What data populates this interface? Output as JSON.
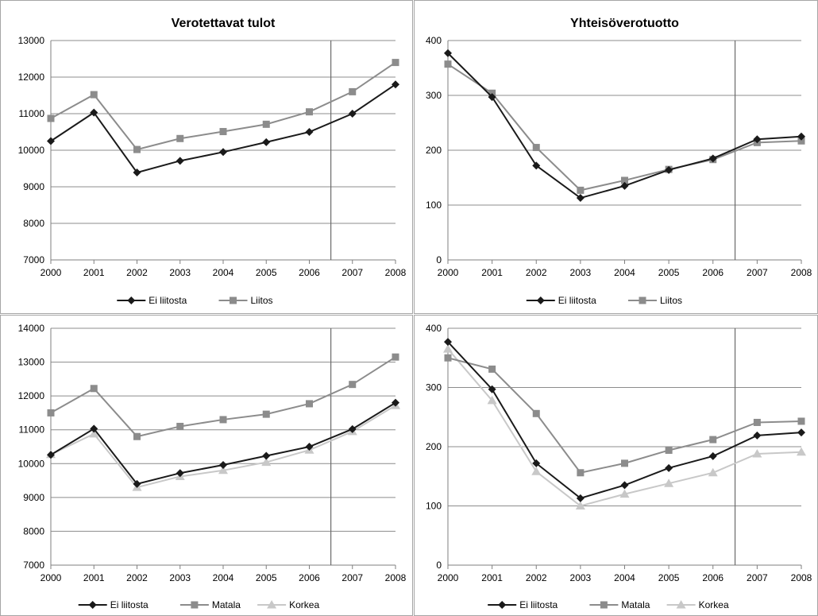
{
  "colors": {
    "ei_liitosta": "#1a1a1a",
    "liitos": "#8c8c8c",
    "matala": "#8c8c8c",
    "korkea": "#c8c8c8",
    "grid": "#8c8c8c",
    "axis": "#7f7f7f",
    "border": "#a6a6a6"
  },
  "chart_data": [
    {
      "type": "line",
      "title": "Verotettavat tulot",
      "x": [
        "2000",
        "2001",
        "2002",
        "2003",
        "2004",
        "2005",
        "2006",
        "2007",
        "2008"
      ],
      "ylim": [
        7000,
        13000
      ],
      "yticks": [
        7000,
        8000,
        9000,
        10000,
        11000,
        12000,
        13000
      ],
      "vline_after": "2006",
      "grid": true,
      "legend": "bottom",
      "series": [
        {
          "name": "Ei liitosta",
          "marker": "diamond",
          "values": [
            10250,
            11030,
            9390,
            9710,
            9950,
            10220,
            10500,
            11000,
            11800
          ]
        },
        {
          "name": "Liitos",
          "marker": "square",
          "values": [
            10870,
            11520,
            10020,
            10320,
            10510,
            10710,
            11050,
            11600,
            12400
          ]
        }
      ]
    },
    {
      "type": "line",
      "title": "Yhteisöverotuotto",
      "x": [
        "2000",
        "2001",
        "2002",
        "2003",
        "2004",
        "2005",
        "2006",
        "2007",
        "2008"
      ],
      "ylim": [
        0,
        400
      ],
      "yticks": [
        0,
        100,
        200,
        300,
        400
      ],
      "vline_after": "2006",
      "grid": true,
      "legend": "bottom",
      "series": [
        {
          "name": "Ei liitosta",
          "marker": "diamond",
          "values": [
            377,
            297,
            172,
            113,
            135,
            164,
            185,
            220,
            225
          ]
        },
        {
          "name": "Liitos",
          "marker": "square",
          "values": [
            357,
            304,
            205,
            127,
            145,
            165,
            183,
            214,
            217
          ]
        }
      ]
    },
    {
      "type": "line",
      "title": "",
      "x": [
        "2000",
        "2001",
        "2002",
        "2003",
        "2004",
        "2005",
        "2006",
        "2007",
        "2008"
      ],
      "ylim": [
        7000,
        14000
      ],
      "yticks": [
        7000,
        8000,
        9000,
        10000,
        11000,
        12000,
        13000,
        14000
      ],
      "vline_after": "2006",
      "grid": true,
      "legend": "bottom",
      "series": [
        {
          "name": "Ei liitosta",
          "marker": "diamond",
          "values": [
            10260,
            11030,
            9400,
            9720,
            9960,
            10230,
            10500,
            11020,
            11800
          ]
        },
        {
          "name": "Matala",
          "marker": "square",
          "values": [
            11500,
            12220,
            10800,
            11100,
            11300,
            11460,
            11770,
            12340,
            13150
          ]
        },
        {
          "name": "Korkea",
          "marker": "triangle",
          "values": [
            10270,
            10880,
            9300,
            9620,
            9800,
            10040,
            10400,
            10950,
            11720
          ]
        }
      ]
    },
    {
      "type": "line",
      "title": "",
      "x": [
        "2000",
        "2001",
        "2002",
        "2003",
        "2004",
        "2005",
        "2006",
        "2007",
        "2008"
      ],
      "ylim": [
        0,
        400
      ],
      "yticks": [
        0,
        100,
        200,
        300,
        400
      ],
      "vline_after": "2006",
      "grid": true,
      "legend": "bottom",
      "series": [
        {
          "name": "Ei liitosta",
          "marker": "diamond",
          "values": [
            377,
            297,
            172,
            113,
            135,
            164,
            184,
            219,
            224
          ]
        },
        {
          "name": "Matala",
          "marker": "square",
          "values": [
            350,
            331,
            256,
            156,
            172,
            194,
            212,
            241,
            243
          ]
        },
        {
          "name": "Korkea",
          "marker": "triangle",
          "values": [
            365,
            278,
            158,
            100,
            120,
            138,
            156,
            188,
            191
          ]
        }
      ]
    }
  ]
}
